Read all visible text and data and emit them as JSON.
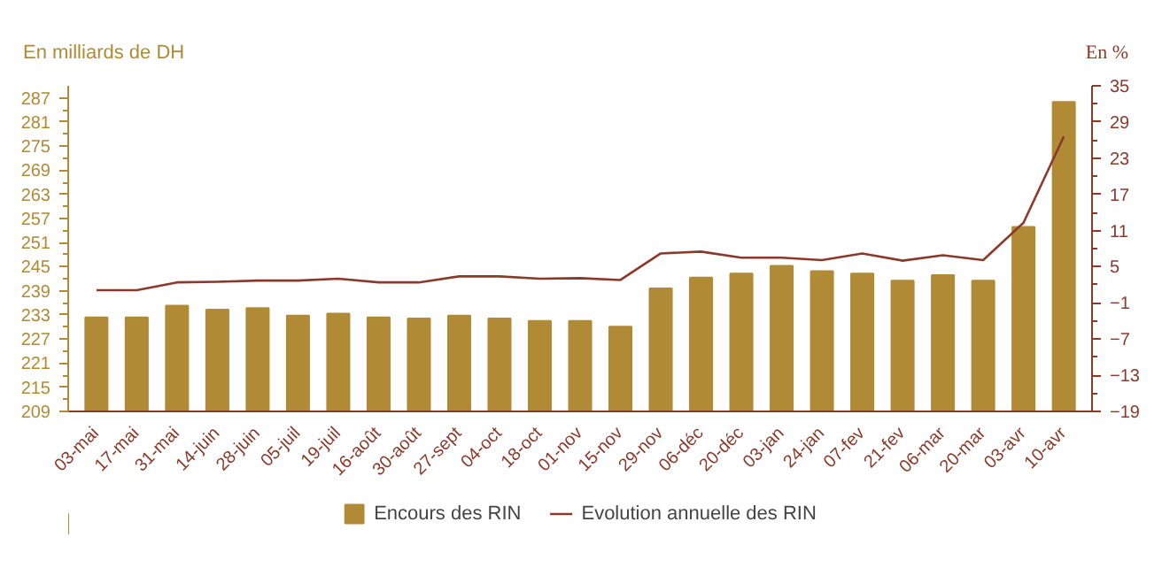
{
  "chart_data": {
    "type": "bar",
    "ylabel": "En milliards de DH",
    "y2label": "En %",
    "categories": [
      "03-mai",
      "17-mai",
      "31-mai",
      "14-juin",
      "28-juin",
      "05-juil",
      "19-juil",
      "16-août",
      "30-août",
      "27-sept",
      "04-oct",
      "18-oct",
      "01-nov",
      "15-nov",
      "29-nov",
      "06-déc",
      "20-déc",
      "03-jan",
      "24-jan",
      "07-fev",
      "21-fev",
      "06-mar",
      "20-mar",
      "03-avr",
      "10-avr"
    ],
    "series": [
      {
        "name": "Encours des RIN",
        "type": "bar",
        "color": "#b08a35",
        "values": [
          232.4,
          232.4,
          235.3,
          234.3,
          234.7,
          232.8,
          233.3,
          232.4,
          232.1,
          232.8,
          232.1,
          231.5,
          231.5,
          230.1,
          239.6,
          242.3,
          243.3,
          245.2,
          243.9,
          243.3,
          241.5,
          242.9,
          241.5,
          254.9,
          286
        ]
      },
      {
        "name": "Evolution annuelle des RIN",
        "type": "line",
        "axis": "y2",
        "color": "#8b3a2a",
        "values": [
          1.1,
          1.1,
          2.4,
          2.5,
          2.7,
          2.7,
          3.0,
          2.4,
          2.4,
          3.4,
          3.4,
          3.0,
          3.1,
          2.8,
          7.2,
          7.5,
          6.5,
          6.5,
          6.1,
          7.2,
          6.0,
          6.9,
          6.1,
          12.3,
          26.6
        ]
      }
    ],
    "ylim": [
      209,
      290
    ],
    "yticks": [
      209,
      215,
      221,
      227,
      233,
      239,
      245,
      251,
      257,
      263,
      269,
      275,
      281,
      287
    ],
    "y2lim": [
      -19,
      35
    ],
    "y2ticks": [
      -19,
      -13,
      -7,
      -1,
      5,
      11,
      17,
      23,
      29,
      35
    ],
    "grid": false,
    "legend": "bottom"
  }
}
